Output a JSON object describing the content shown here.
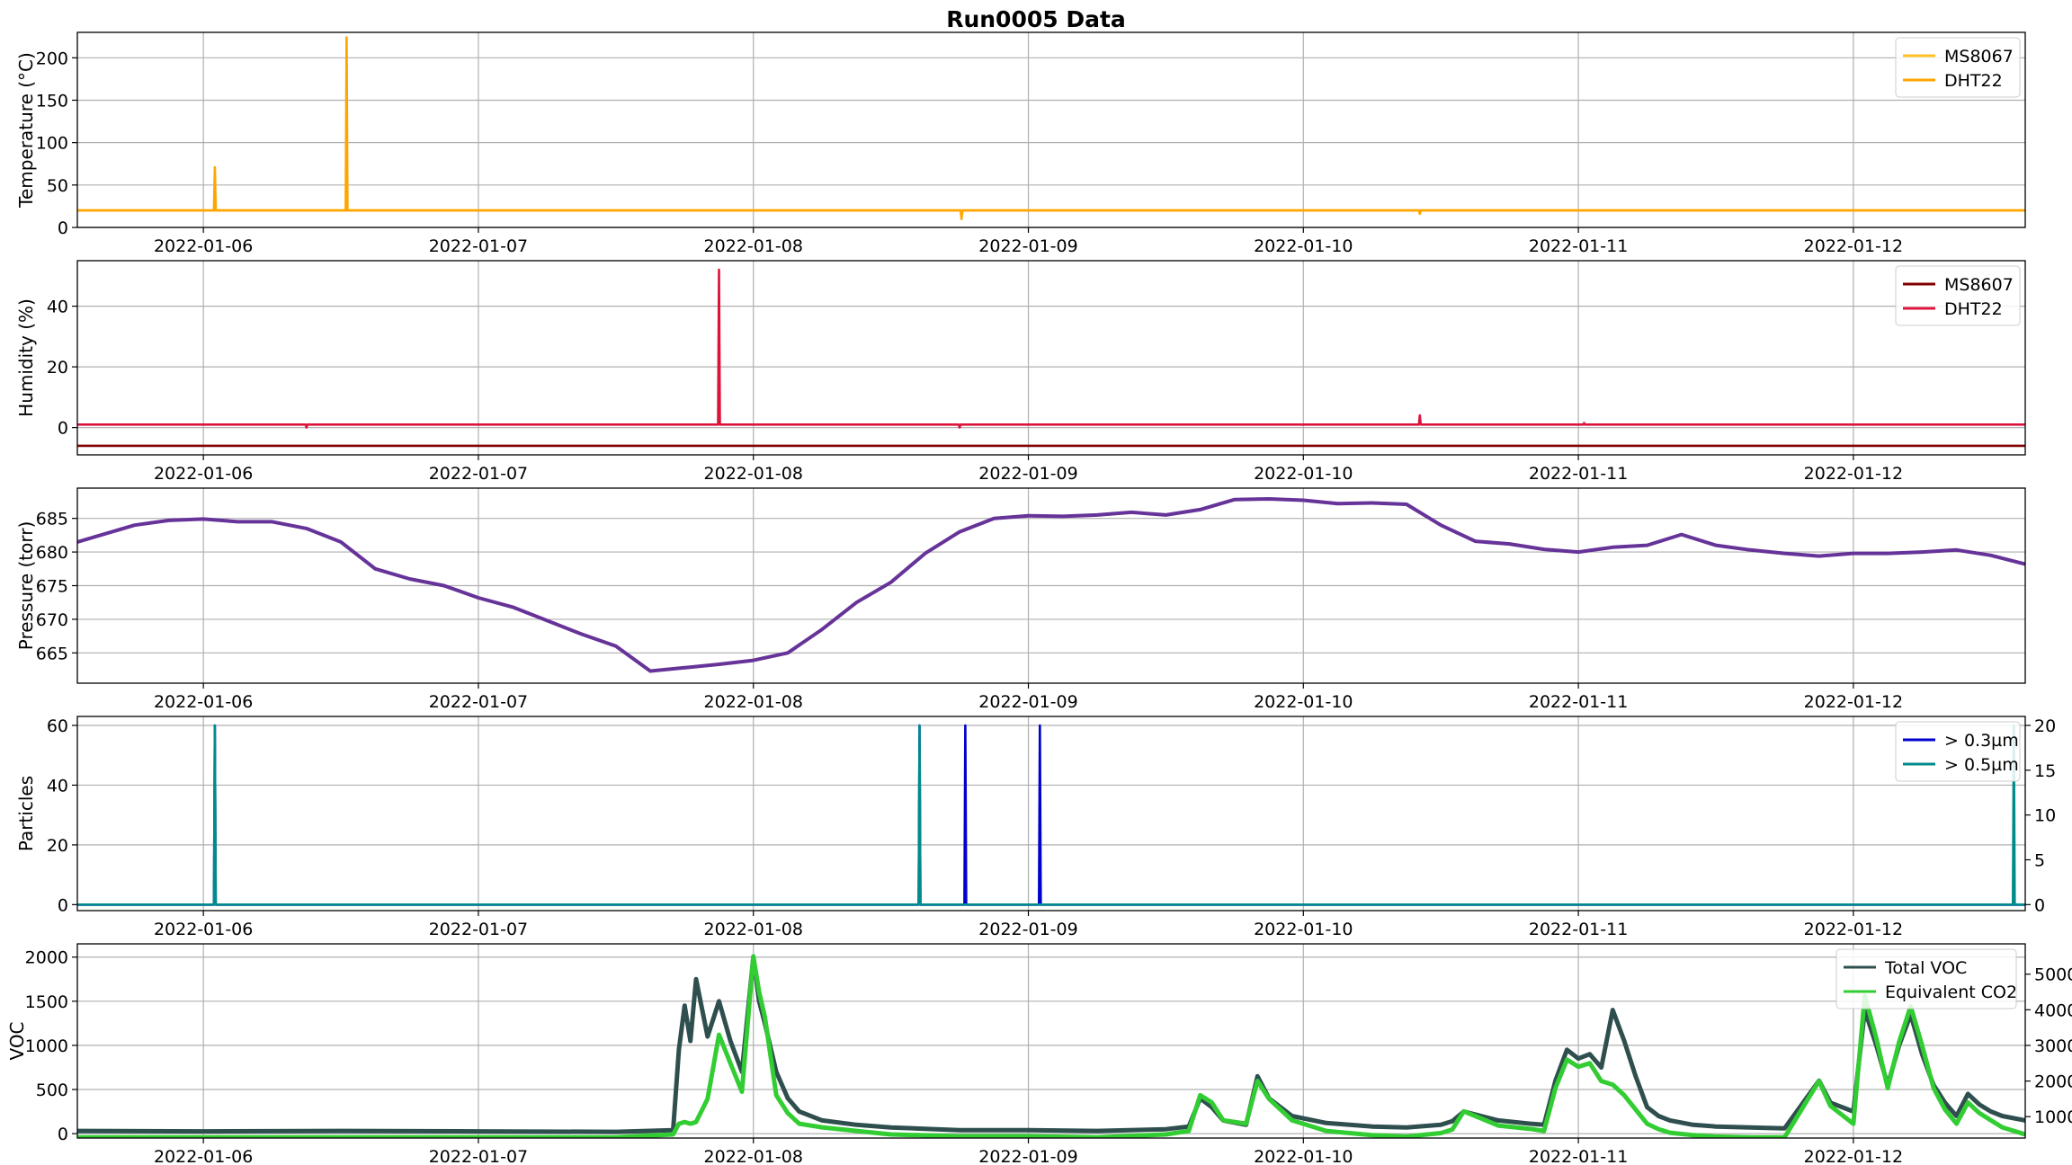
{
  "figure_title": "Run0005 Data",
  "date_ticks": [
    "2022-01-06",
    "2022-01-07",
    "2022-01-08",
    "2022-01-09",
    "2022-01-10",
    "2022-01-11",
    "2022-01-12"
  ],
  "chart_data": [
    {
      "type": "line",
      "title": "Run0005 Data",
      "xlabel": "",
      "ylabel": "Temperature (°C)",
      "xlim": [
        "2022-01-05 13:00",
        "2022-01-12 15:00"
      ],
      "ylim": [
        0,
        230
      ],
      "yticks": [
        0,
        50,
        100,
        150,
        200
      ],
      "grid": true,
      "legend_position": "top-right",
      "series": [
        {
          "name": "MS8067",
          "color": "#ffc125",
          "x": [
            "2022-01-05 13:00",
            "2022-01-12 15:00"
          ],
          "y": [
            20,
            20
          ]
        },
        {
          "name": "DHT22",
          "color": "#ffa500",
          "baseline": 20,
          "spikes": [
            {
              "x": "2022-01-06 01:00",
              "y": 71
            },
            {
              "x": "2022-01-06 12:30",
              "y": 224
            },
            {
              "x": "2022-01-08 18:10",
              "y": 10
            },
            {
              "x": "2022-01-10 10:10",
              "y": 16
            }
          ]
        }
      ]
    },
    {
      "type": "line",
      "xlabel": "",
      "ylabel": "Humidity (%)",
      "xlim": [
        "2022-01-05 13:00",
        "2022-01-12 15:00"
      ],
      "ylim": [
        -9,
        55
      ],
      "yticks": [
        0,
        20,
        40
      ],
      "grid": true,
      "legend_position": "top-right",
      "series": [
        {
          "name": "MS8607",
          "color": "#800000",
          "x": [
            "2022-01-05 13:00",
            "2022-01-12 15:00"
          ],
          "y": [
            -6,
            -6
          ]
        },
        {
          "name": "DHT22",
          "color": "#dc143c",
          "baseline": 1,
          "spikes": [
            {
              "x": "2022-01-06 09:00",
              "y": 0
            },
            {
              "x": "2022-01-07 21:00",
              "y": 52
            },
            {
              "x": "2022-01-08 18:00",
              "y": 0
            },
            {
              "x": "2022-01-10 10:10",
              "y": 4
            },
            {
              "x": "2022-01-11 00:30",
              "y": 1.5
            }
          ]
        }
      ]
    },
    {
      "type": "line",
      "xlabel": "",
      "ylabel": "Pressure (torr)",
      "xlim": [
        "2022-01-05 13:00",
        "2022-01-12 15:00"
      ],
      "ylim": [
        660.5,
        689.5
      ],
      "yticks": [
        665,
        670,
        675,
        680,
        685
      ],
      "grid": true,
      "series": [
        {
          "name": "",
          "color": "#663399",
          "x": [
            "2022-01-05 13:00",
            "2022-01-05 15:00",
            "2022-01-05 18:00",
            "2022-01-05 21:00",
            "2022-01-06 00:00",
            "2022-01-06 03:00",
            "2022-01-06 06:00",
            "2022-01-06 09:00",
            "2022-01-06 12:00",
            "2022-01-06 15:00",
            "2022-01-06 18:00",
            "2022-01-06 21:00",
            "2022-01-07 00:00",
            "2022-01-07 03:00",
            "2022-01-07 06:00",
            "2022-01-07 09:00",
            "2022-01-07 12:00",
            "2022-01-07 15:00",
            "2022-01-07 18:00",
            "2022-01-07 21:00",
            "2022-01-08 00:00",
            "2022-01-08 03:00",
            "2022-01-08 06:00",
            "2022-01-08 09:00",
            "2022-01-08 12:00",
            "2022-01-08 15:00",
            "2022-01-08 18:00",
            "2022-01-08 21:00",
            "2022-01-09 00:00",
            "2022-01-09 03:00",
            "2022-01-09 06:00",
            "2022-01-09 09:00",
            "2022-01-09 12:00",
            "2022-01-09 15:00",
            "2022-01-09 18:00",
            "2022-01-09 21:00",
            "2022-01-10 00:00",
            "2022-01-10 03:00",
            "2022-01-10 06:00",
            "2022-01-10 09:00",
            "2022-01-10 12:00",
            "2022-01-10 15:00",
            "2022-01-10 18:00",
            "2022-01-10 21:00",
            "2022-01-11 00:00",
            "2022-01-11 03:00",
            "2022-01-11 06:00",
            "2022-01-11 09:00",
            "2022-01-11 12:00",
            "2022-01-11 15:00",
            "2022-01-11 18:00",
            "2022-01-11 21:00",
            "2022-01-12 00:00",
            "2022-01-12 03:00",
            "2022-01-12 06:00",
            "2022-01-12 09:00",
            "2022-01-12 12:00",
            "2022-01-12 15:00"
          ],
          "y": [
            681.5,
            682.5,
            684.0,
            684.7,
            684.9,
            684.5,
            684.5,
            683.5,
            681.5,
            677.5,
            676.0,
            675.0,
            673.2,
            671.8,
            669.8,
            667.8,
            666.0,
            662.3,
            662.8,
            663.3,
            663.9,
            665.0,
            668.5,
            672.5,
            675.5,
            679.8,
            683.0,
            685.0,
            685.4,
            685.3,
            685.5,
            685.9,
            685.5,
            686.3,
            687.8,
            687.9,
            687.7,
            687.2,
            687.3,
            687.1,
            684.0,
            681.6,
            681.2,
            680.4,
            680.0,
            680.7,
            681.0,
            682.6,
            681.0,
            680.3,
            679.8,
            679.4,
            679.8,
            679.8,
            680.0,
            680.3,
            679.5,
            678.2
          ]
        }
      ]
    },
    {
      "type": "line",
      "xlabel": "",
      "ylabel": "Particles",
      "ylabel_right": "",
      "xlim": [
        "2022-01-05 13:00",
        "2022-01-12 15:00"
      ],
      "ylim": [
        -2,
        63
      ],
      "ylim_right": [
        -0.67,
        21
      ],
      "yticks": [
        0,
        20,
        40,
        60
      ],
      "yticks_right": [
        0,
        5,
        10,
        15,
        20
      ],
      "grid": true,
      "legend_position": "top-right",
      "series": [
        {
          "name": "> 0.3µm",
          "color": "#0000cd",
          "axis": "left",
          "baseline": 0,
          "spikes": [
            {
              "x": "2022-01-06 01:00",
              "y": 60
            },
            {
              "x": "2022-01-08 14:30",
              "y": 60
            },
            {
              "x": "2022-01-08 18:30",
              "y": 60
            },
            {
              "x": "2022-01-09 01:00",
              "y": 60
            }
          ]
        },
        {
          "name": "> 0.5µm",
          "color": "#008b8b",
          "axis": "right",
          "baseline": 0,
          "spikes": [
            {
              "x": "2022-01-06 01:00",
              "y": 20
            },
            {
              "x": "2022-01-08 14:30",
              "y": 20
            },
            {
              "x": "2022-01-12 14:00",
              "y": 20
            }
          ]
        }
      ]
    },
    {
      "type": "line",
      "xlabel": "",
      "ylabel": "VOC",
      "ylabel_right": "",
      "xlim": [
        "2022-01-05 13:00",
        "2022-01-12 15:00"
      ],
      "ylim": [
        -50,
        2150
      ],
      "ylim_right": [
        400,
        5850
      ],
      "yticks": [
        0,
        500,
        1000,
        1500,
        2000
      ],
      "yticks_right": [
        1000,
        2000,
        3000,
        4000,
        5000
      ],
      "grid": true,
      "legend_position": "top-right",
      "series": [
        {
          "name": "Total VOC",
          "color": "#2f4f4f",
          "axis": "left",
          "x": [
            "2022-01-05 13:00",
            "2022-01-06 00:00",
            "2022-01-06 12:00",
            "2022-01-07 00:00",
            "2022-01-07 12:00",
            "2022-01-07 17:00",
            "2022-01-07 17:30",
            "2022-01-07 18:00",
            "2022-01-07 18:30",
            "2022-01-07 19:00",
            "2022-01-07 20:00",
            "2022-01-07 21:00",
            "2022-01-07 22:00",
            "2022-01-07 23:00",
            "2022-01-08 00:00",
            "2022-01-08 00:30",
            "2022-01-08 01:00",
            "2022-01-08 02:00",
            "2022-01-08 03:00",
            "2022-01-08 04:00",
            "2022-01-08 06:00",
            "2022-01-08 09:00",
            "2022-01-08 12:00",
            "2022-01-08 18:00",
            "2022-01-09 00:00",
            "2022-01-09 06:00",
            "2022-01-09 12:00",
            "2022-01-09 14:00",
            "2022-01-09 15:00",
            "2022-01-09 16:00",
            "2022-01-09 17:00",
            "2022-01-09 19:00",
            "2022-01-09 20:00",
            "2022-01-09 21:00",
            "2022-01-09 23:00",
            "2022-01-10 02:00",
            "2022-01-10 06:00",
            "2022-01-10 09:00",
            "2022-01-10 12:00",
            "2022-01-10 13:00",
            "2022-01-10 14:00",
            "2022-01-10 17:00",
            "2022-01-10 20:00",
            "2022-01-10 21:00",
            "2022-01-10 22:00",
            "2022-01-10 23:00",
            "2022-01-11 00:00",
            "2022-01-11 01:00",
            "2022-01-11 02:00",
            "2022-01-11 03:00",
            "2022-01-11 04:00",
            "2022-01-11 05:00",
            "2022-01-11 06:00",
            "2022-01-11 07:00",
            "2022-01-11 08:00",
            "2022-01-11 10:00",
            "2022-01-11 12:00",
            "2022-01-11 15:00",
            "2022-01-11 18:00",
            "2022-01-11 21:00",
            "2022-01-11 22:00",
            "2022-01-12 00:00",
            "2022-01-12 01:00",
            "2022-01-12 02:00",
            "2022-01-12 03:00",
            "2022-01-12 04:00",
            "2022-01-12 05:00",
            "2022-01-12 06:00",
            "2022-01-12 07:00",
            "2022-01-12 08:00",
            "2022-01-12 09:00",
            "2022-01-12 10:00",
            "2022-01-12 11:00",
            "2022-01-12 12:00",
            "2022-01-12 13:00",
            "2022-01-12 15:00"
          ],
          "y": [
            30,
            25,
            30,
            25,
            20,
            40,
            950,
            1450,
            1050,
            1750,
            1100,
            1500,
            1050,
            700,
            2000,
            1500,
            1250,
            700,
            400,
            250,
            150,
            100,
            70,
            40,
            40,
            30,
            50,
            80,
            400,
            300,
            150,
            100,
            650,
            400,
            200,
            120,
            80,
            70,
            100,
            140,
            250,
            150,
            110,
            100,
            600,
            950,
            850,
            900,
            750,
            1400,
            1050,
            650,
            300,
            200,
            150,
            100,
            80,
            70,
            60,
            600,
            350,
            250,
            1400,
            1000,
            550,
            1000,
            1350,
            900,
            550,
            350,
            200,
            450,
            330,
            250,
            200,
            150
          ]
        },
        {
          "name": "Equivalent CO2",
          "color": "#32cd32",
          "axis": "right",
          "x": [
            "2022-01-05 13:00",
            "2022-01-06 00:00",
            "2022-01-06 12:00",
            "2022-01-07 00:00",
            "2022-01-07 12:00",
            "2022-01-07 17:00",
            "2022-01-07 17:30",
            "2022-01-07 18:00",
            "2022-01-07 18:30",
            "2022-01-07 19:00",
            "2022-01-07 20:00",
            "2022-01-07 21:00",
            "2022-01-07 22:00",
            "2022-01-07 23:00",
            "2022-01-08 00:00",
            "2022-01-08 00:30",
            "2022-01-08 01:00",
            "2022-01-08 02:00",
            "2022-01-08 03:00",
            "2022-01-08 04:00",
            "2022-01-08 06:00",
            "2022-01-08 09:00",
            "2022-01-08 12:00",
            "2022-01-08 18:00",
            "2022-01-09 00:00",
            "2022-01-09 06:00",
            "2022-01-09 12:00",
            "2022-01-09 14:00",
            "2022-01-09 15:00",
            "2022-01-09 16:00",
            "2022-01-09 17:00",
            "2022-01-09 19:00",
            "2022-01-09 20:00",
            "2022-01-09 21:00",
            "2022-01-09 23:00",
            "2022-01-10 02:00",
            "2022-01-10 06:00",
            "2022-01-10 09:00",
            "2022-01-10 12:00",
            "2022-01-10 13:00",
            "2022-01-10 14:00",
            "2022-01-10 17:00",
            "2022-01-10 20:00",
            "2022-01-10 21:00",
            "2022-01-10 22:00",
            "2022-01-10 23:00",
            "2022-01-11 00:00",
            "2022-01-11 01:00",
            "2022-01-11 02:00",
            "2022-01-11 03:00",
            "2022-01-11 04:00",
            "2022-01-11 05:00",
            "2022-01-11 06:00",
            "2022-01-11 07:00",
            "2022-01-11 08:00",
            "2022-01-11 10:00",
            "2022-01-11 12:00",
            "2022-01-11 15:00",
            "2022-01-11 18:00",
            "2022-01-11 21:00",
            "2022-01-11 22:00",
            "2022-01-12 00:00",
            "2022-01-12 01:00",
            "2022-01-12 02:00",
            "2022-01-12 03:00",
            "2022-01-12 04:00",
            "2022-01-12 05:00",
            "2022-01-12 06:00",
            "2022-01-12 07:00",
            "2022-01-12 08:00",
            "2022-01-12 09:00",
            "2022-01-12 10:00",
            "2022-01-12 11:00",
            "2022-01-12 12:00",
            "2022-01-12 13:00",
            "2022-01-12 15:00"
          ],
          "y": [
            420,
            420,
            420,
            420,
            420,
            500,
            800,
            850,
            800,
            850,
            1500,
            3300,
            2500,
            1700,
            5500,
            4500,
            3800,
            1600,
            1100,
            800,
            700,
            600,
            500,
            450,
            450,
            420,
            500,
            600,
            1600,
            1400,
            900,
            800,
            2000,
            1500,
            900,
            600,
            480,
            440,
            540,
            640,
            1150,
            750,
            650,
            600,
            1800,
            2600,
            2400,
            2500,
            2000,
            1900,
            1600,
            1200,
            800,
            650,
            550,
            480,
            440,
            420,
            420,
            2000,
            1300,
            800,
            4400,
            3200,
            1800,
            3100,
            4100,
            3000,
            1800,
            1200,
            800,
            1400,
            1100,
            900,
            700,
            500
          ]
        }
      ]
    }
  ]
}
